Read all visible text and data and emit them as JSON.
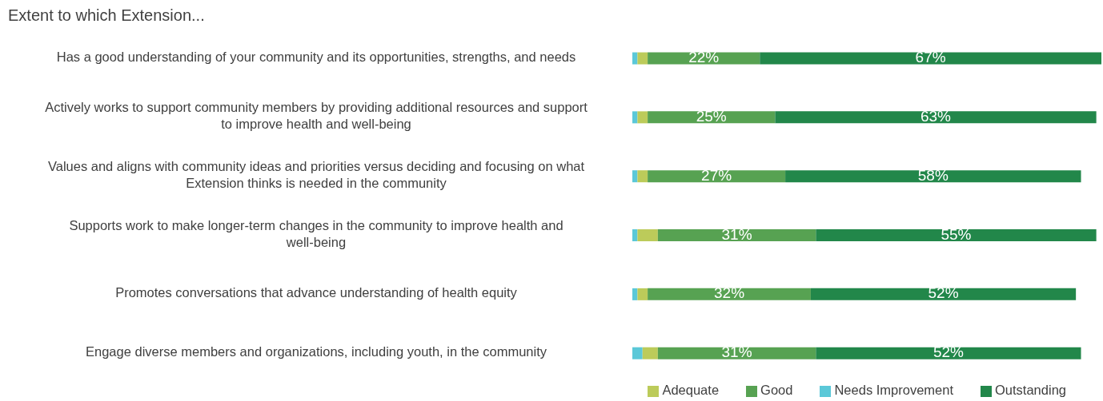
{
  "chart_data": {
    "type": "bar",
    "orientation": "horizontal",
    "stacked": true,
    "title": "Extent to which Extension...",
    "categories": [
      "Has a good understanding of your community and its opportunities, strengths, and needs",
      "Actively works to support community members by providing additional resources and support to improve health and well-being",
      "Values and aligns with community ideas and priorities versus deciding and focusing on what Extension thinks is needed in the community",
      "Supports work to make longer-term changes in the community to improve health and well-being",
      "Promotes conversations that advance understanding of health equity",
      "Engage diverse members and organizations, including youth, in the community"
    ],
    "series": [
      {
        "name": "Needs Improvement",
        "color": "#5bc8d8",
        "values": [
          1,
          1,
          1,
          1,
          1,
          2
        ],
        "value_labels": [
          null,
          null,
          null,
          null,
          null,
          null
        ]
      },
      {
        "name": "Adequate",
        "color": "#bccb5a",
        "values": [
          2,
          2,
          2,
          4,
          2,
          3
        ],
        "value_labels": [
          null,
          null,
          null,
          null,
          null,
          null
        ]
      },
      {
        "name": "Good",
        "color": "#57a252",
        "values": [
          22,
          25,
          27,
          31,
          32,
          31
        ],
        "value_labels": [
          "22%",
          "25%",
          "27%",
          "31%",
          "32%",
          "31%"
        ]
      },
      {
        "name": "Outstanding",
        "color": "#22874a",
        "values": [
          67,
          63,
          58,
          55,
          52,
          52
        ],
        "value_labels": [
          "67%",
          "63%",
          "58%",
          "55%",
          "52%",
          "52%"
        ]
      }
    ],
    "grid": false,
    "legend": "bottom",
    "tick_labels": "y"
  }
}
